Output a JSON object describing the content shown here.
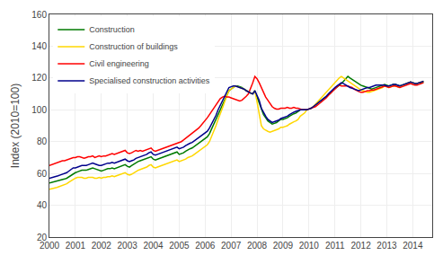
{
  "chart_data": {
    "type": "line",
    "ylabel": "Index (2010=100)",
    "x": [
      2000,
      2000.083333,
      2000.166667,
      2000.25,
      2000.333333,
      2000.416667,
      2000.5,
      2000.583333,
      2000.666667,
      2000.75,
      2000.833333,
      2000.916667,
      2001,
      2001.083333,
      2001.166667,
      2001.25,
      2001.333333,
      2001.416667,
      2001.5,
      2001.583333,
      2001.666667,
      2001.75,
      2001.833333,
      2001.916667,
      2002,
      2002.083333,
      2002.166667,
      2002.25,
      2002.333333,
      2002.416667,
      2002.5,
      2002.583333,
      2002.666667,
      2002.75,
      2002.833333,
      2002.916667,
      2003,
      2003.083333,
      2003.166667,
      2003.25,
      2003.333333,
      2003.416667,
      2003.5,
      2003.583333,
      2003.666667,
      2003.75,
      2003.833333,
      2003.916667,
      2004,
      2004.083333,
      2004.166667,
      2004.25,
      2004.333333,
      2004.416667,
      2004.5,
      2004.583333,
      2004.666667,
      2004.75,
      2004.833333,
      2004.916667,
      2005,
      2005.083333,
      2005.166667,
      2005.25,
      2005.333333,
      2005.416667,
      2005.5,
      2005.583333,
      2005.666667,
      2005.75,
      2005.833333,
      2005.916667,
      2006,
      2006.083333,
      2006.166667,
      2006.25,
      2006.333333,
      2006.416667,
      2006.5,
      2006.583333,
      2006.666667,
      2006.75,
      2006.833333,
      2006.916667,
      2007,
      2007.083333,
      2007.166667,
      2007.25,
      2007.333333,
      2007.416667,
      2007.5,
      2007.583333,
      2007.666667,
      2007.75,
      2007.833333,
      2007.916667,
      2008,
      2008.083333,
      2008.166667,
      2008.25,
      2008.333333,
      2008.416667,
      2008.5,
      2008.583333,
      2008.666667,
      2008.75,
      2008.833333,
      2008.916667,
      2009,
      2009.083333,
      2009.166667,
      2009.25,
      2009.333333,
      2009.416667,
      2009.5,
      2009.583333,
      2009.666667,
      2009.75,
      2009.833333,
      2009.916667,
      2010,
      2010.083333,
      2010.166667,
      2010.25,
      2010.333333,
      2010.416667,
      2010.5,
      2010.583333,
      2010.666667,
      2010.75,
      2010.833333,
      2010.916667,
      2011,
      2011.083333,
      2011.166667,
      2011.25,
      2011.333333,
      2011.416667,
      2011.5,
      2011.583333,
      2011.666667,
      2011.75,
      2011.833333,
      2011.916667,
      2012,
      2012.083333,
      2012.166667,
      2012.25,
      2012.333333,
      2012.416667,
      2012.5,
      2012.583333,
      2012.666667,
      2012.75,
      2012.833333,
      2012.916667,
      2013,
      2013.083333,
      2013.166667,
      2013.25,
      2013.333333,
      2013.416667,
      2013.5,
      2013.583333,
      2013.666667,
      2013.75,
      2013.833333,
      2013.916667,
      2014,
      2014.083333,
      2014.166667,
      2014.25,
      2014.333333,
      2014.416667
    ],
    "series": [
      {
        "name": "Construction",
        "color": "#007A00",
        "values": [
          54.0,
          54.3,
          54.6,
          55.0,
          55.5,
          55.8,
          56.0,
          56.5,
          57.0,
          58.0,
          59.0,
          60.0,
          60.5,
          61.0,
          61.5,
          62.0,
          62.0,
          62.0,
          62.5,
          63.0,
          63.5,
          63.0,
          62.5,
          62.0,
          61.5,
          62.0,
          62.5,
          63.0,
          63.0,
          63.5,
          63.0,
          63.5,
          64.0,
          64.5,
          65.0,
          65.5,
          64.5,
          64.0,
          65.0,
          66.0,
          67.0,
          67.5,
          68.0,
          68.5,
          69.0,
          69.5,
          70.0,
          70.5,
          69.0,
          68.5,
          69.0,
          69.5,
          70.0,
          70.5,
          71.0,
          71.5,
          72.0,
          72.5,
          73.0,
          73.5,
          72.0,
          72.5,
          73.0,
          74.0,
          75.0,
          75.5,
          76.0,
          77.0,
          78.0,
          79.0,
          80.0,
          81.0,
          82.0,
          83.0,
          85.0,
          88.0,
          91.0,
          93.5,
          97.0,
          100.0,
          103.0,
          106.0,
          109.0,
          112.0,
          113.0,
          114.0,
          115.0,
          115.0,
          114.5,
          114.0,
          113.0,
          112.0,
          111.0,
          110.5,
          110.0,
          112.0,
          108.0,
          104.0,
          100.0,
          97.0,
          95.0,
          93.0,
          92.0,
          91.0,
          91.5,
          92.0,
          93.0,
          94.0,
          94.0,
          94.5,
          95.0,
          96.0,
          97.0,
          97.5,
          98.0,
          99.0,
          100.0,
          100.0,
          100.0,
          100.0,
          100.5,
          101.0,
          102.0,
          103.0,
          104.0,
          105.0,
          106.0,
          107.0,
          108.0,
          109.0,
          110.5,
          112.0,
          113.0,
          114.0,
          115.0,
          116.5,
          118.0,
          119.5,
          121.0,
          120.0,
          119.0,
          118.0,
          117.0,
          116.0,
          115.5,
          115.0,
          114.5,
          114.0,
          113.5,
          113.0,
          113.5,
          114.0,
          114.5,
          115.0,
          115.5,
          116.0,
          115.5,
          115.0,
          115.5,
          116.0,
          116.0,
          115.5,
          115.0,
          115.5,
          116.0,
          116.5,
          117.0,
          117.5,
          117.0,
          116.5,
          116.5,
          117.0,
          117.0,
          117.5
        ]
      },
      {
        "name": "Construction of buildings",
        "color": "#FFD700",
        "values": [
          50.0,
          50.2,
          50.5,
          51.0,
          51.5,
          52.0,
          52.5,
          53.0,
          53.5,
          54.5,
          55.5,
          56.5,
          57.0,
          57.5,
          57.5,
          57.5,
          57.0,
          57.0,
          57.5,
          57.5,
          57.5,
          57.0,
          57.0,
          57.5,
          57.0,
          57.5,
          57.5,
          58.0,
          58.0,
          58.5,
          58.0,
          58.5,
          59.0,
          59.5,
          60.0,
          60.5,
          59.5,
          59.0,
          59.5,
          60.5,
          61.5,
          62.0,
          62.5,
          63.0,
          63.5,
          64.0,
          65.0,
          65.5,
          64.0,
          63.5,
          64.0,
          64.5,
          65.0,
          65.5,
          66.0,
          66.5,
          67.0,
          67.5,
          68.0,
          68.5,
          67.5,
          68.0,
          68.5,
          69.0,
          70.0,
          70.5,
          71.0,
          72.0,
          73.0,
          74.0,
          75.0,
          76.0,
          77.0,
          78.0,
          80.0,
          83.0,
          87.0,
          90.0,
          94.0,
          97.0,
          101.0,
          105.0,
          108.0,
          112.0,
          113.0,
          114.0,
          115.0,
          114.5,
          114.0,
          113.5,
          113.0,
          112.0,
          111.0,
          110.5,
          110.0,
          112.0,
          105.0,
          98.0,
          90.0,
          88.0,
          87.0,
          86.5,
          86.0,
          86.5,
          87.0,
          87.5,
          88.0,
          89.0,
          89.0,
          89.5,
          90.0,
          91.0,
          92.0,
          92.5,
          93.0,
          94.0,
          96.0,
          97.0,
          98.0,
          100.0,
          100.5,
          101.0,
          102.0,
          103.5,
          105.0,
          106.5,
          108.0,
          109.5,
          111.0,
          112.5,
          114.0,
          116.0,
          117.0,
          118.5,
          120.0,
          121.0,
          120.0,
          119.0,
          118.0,
          117.0,
          116.0,
          115.0,
          114.0,
          113.0,
          112.5,
          112.0,
          111.5,
          111.0,
          111.0,
          111.5,
          112.0,
          112.5,
          113.0,
          113.5,
          114.0,
          115.0,
          114.5,
          114.0,
          114.5,
          115.0,
          115.0,
          114.5,
          114.0,
          115.0,
          116.0,
          116.5,
          117.0,
          117.5,
          117.0,
          116.5,
          116.5,
          117.0,
          117.5,
          118.0
        ]
      },
      {
        "name": "Civil engineering",
        "color": "#FF0000",
        "values": [
          65.0,
          65.5,
          66.0,
          66.5,
          67.0,
          67.5,
          68.0,
          68.0,
          68.5,
          69.0,
          69.5,
          70.0,
          70.0,
          70.5,
          70.5,
          70.0,
          69.5,
          70.0,
          70.5,
          70.5,
          71.0,
          70.0,
          70.5,
          71.0,
          70.5,
          71.0,
          71.0,
          71.5,
          72.0,
          72.5,
          72.0,
          72.5,
          73.0,
          73.5,
          74.0,
          74.5,
          73.0,
          72.5,
          73.0,
          74.0,
          74.5,
          74.0,
          74.5,
          74.0,
          74.5,
          75.0,
          75.5,
          76.0,
          74.5,
          74.0,
          74.5,
          75.0,
          75.5,
          76.0,
          76.5,
          77.0,
          77.5,
          78.0,
          78.5,
          79.0,
          79.5,
          80.0,
          81.0,
          82.0,
          83.0,
          84.0,
          85.0,
          86.0,
          87.0,
          88.5,
          90.0,
          91.5,
          93.0,
          95.0,
          97.0,
          99.0,
          101.0,
          103.0,
          105.0,
          107.0,
          108.0,
          108.5,
          108.0,
          108.0,
          107.5,
          107.0,
          106.5,
          106.0,
          105.5,
          106.0,
          107.0,
          108.5,
          110.0,
          113.0,
          117.0,
          121.0,
          119.5,
          117.0,
          114.0,
          111.0,
          108.0,
          106.0,
          104.0,
          102.0,
          101.0,
          100.5,
          100.5,
          101.0,
          101.0,
          101.0,
          101.5,
          101.0,
          101.0,
          101.5,
          101.0,
          101.0,
          100.5,
          100.0,
          100.0,
          100.0,
          100.5,
          101.0,
          101.5,
          102.0,
          103.0,
          104.0,
          105.0,
          106.0,
          107.5,
          109.0,
          110.5,
          112.0,
          113.0,
          114.5,
          115.5,
          115.0,
          115.0,
          115.0,
          115.0,
          114.5,
          114.0,
          113.0,
          112.0,
          111.5,
          111.0,
          111.0,
          111.5,
          112.0,
          112.0,
          112.5,
          112.5,
          113.0,
          113.5,
          114.0,
          114.5,
          115.0,
          114.5,
          114.0,
          114.5,
          115.0,
          115.0,
          114.5,
          114.0,
          114.5,
          115.0,
          115.5,
          116.0,
          116.5,
          116.0,
          115.5,
          115.5,
          116.0,
          116.5,
          117.0
        ]
      },
      {
        "name": "Specialised construction activities",
        "color": "#00008B",
        "values": [
          57.0,
          57.3,
          57.6,
          58.0,
          58.5,
          59.0,
          59.5,
          60.0,
          60.5,
          61.5,
          62.5,
          63.5,
          63.5,
          64.0,
          64.5,
          65.0,
          65.0,
          65.0,
          65.5,
          66.0,
          66.5,
          66.0,
          65.5,
          65.0,
          65.0,
          65.5,
          66.0,
          66.5,
          66.5,
          67.0,
          66.5,
          67.0,
          67.5,
          68.0,
          68.5,
          69.0,
          68.0,
          67.5,
          68.0,
          68.5,
          69.5,
          70.0,
          70.5,
          71.0,
          71.5,
          72.0,
          73.0,
          73.5,
          72.0,
          71.5,
          72.0,
          72.5,
          73.0,
          73.5,
          74.0,
          74.5,
          75.0,
          75.5,
          76.0,
          76.5,
          75.5,
          76.0,
          76.5,
          77.5,
          78.5,
          79.0,
          79.5,
          80.5,
          81.5,
          82.5,
          83.5,
          84.5,
          85.5,
          86.5,
          88.5,
          91.0,
          94.0,
          96.5,
          100.0,
          103.0,
          106.0,
          109.0,
          111.5,
          114.0,
          114.5,
          115.0,
          115.0,
          114.5,
          114.0,
          113.5,
          113.0,
          112.0,
          111.0,
          110.5,
          110.0,
          112.0,
          109.0,
          106.0,
          101.0,
          98.0,
          96.0,
          94.0,
          93.0,
          92.0,
          92.5,
          93.0,
          93.5,
          94.5,
          95.0,
          95.5,
          96.0,
          97.0,
          98.0,
          98.5,
          99.0,
          99.5,
          100.0,
          100.0,
          100.0,
          100.0,
          100.5,
          101.0,
          102.0,
          103.0,
          104.0,
          105.0,
          106.0,
          107.0,
          108.5,
          110.0,
          111.5,
          113.0,
          114.0,
          115.0,
          116.0,
          117.0,
          116.5,
          115.5,
          114.5,
          114.0,
          113.5,
          113.0,
          112.5,
          112.0,
          112.5,
          113.0,
          113.5,
          114.0,
          114.0,
          114.5,
          115.0,
          115.5,
          115.5,
          115.5,
          115.5,
          115.5,
          115.0,
          115.0,
          115.5,
          116.0,
          116.0,
          115.5,
          115.0,
          115.5,
          116.0,
          116.5,
          117.0,
          117.5,
          117.0,
          116.5,
          116.5,
          117.0,
          117.5,
          118.0
        ]
      }
    ],
    "xlim": [
      2000.0,
      2014.75
    ],
    "xticks": [
      2000,
      2001,
      2002,
      2003,
      2004,
      2005,
      2006,
      2007,
      2008,
      2009,
      2010,
      2011,
      2012,
      2013,
      2014
    ],
    "ylim": [
      20,
      160
    ],
    "yticks": [
      20,
      40,
      60,
      80,
      100,
      120,
      140,
      160
    ],
    "grid": true,
    "legend": "upper left"
  }
}
